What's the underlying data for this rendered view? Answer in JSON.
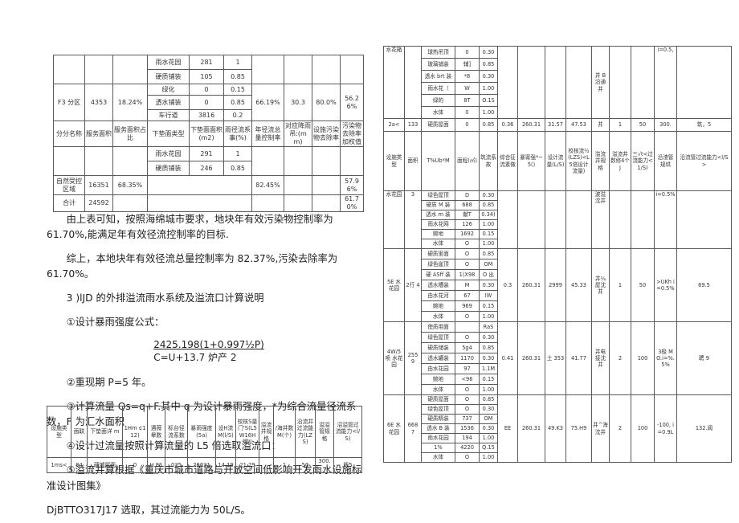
{
  "left": {
    "table1": {
      "cols": [
        39,
        35,
        43,
        52,
        43,
        35,
        40,
        35,
        35,
        29
      ],
      "rows": [
        {
          "h": 18,
          "cells": [
            {
              "t": "",
              "rs": 2
            },
            {
              "t": "",
              "rs": 2
            },
            {
              "t": "",
              "rs": 2
            },
            "雨水花园",
            "281",
            "1",
            {
              "t": "",
              "rs": 2
            },
            {
              "t": "",
              "rs": 2
            },
            {
              "t": "",
              "rs": 2
            },
            {
              "t": "",
              "rs": 2
            }
          ]
        },
        {
          "h": 18,
          "cells": [
            "硬质铺装",
            "105",
            "0.85"
          ]
        },
        {
          "h": 14,
          "cells": [
            {
              "t": "F3 分区",
              "rs": 3
            },
            {
              "t": "4353",
              "rs": 3
            },
            {
              "t": "18.24%",
              "rs": 3
            },
            "绿化",
            "0",
            "0.15",
            {
              "t": "66.19%",
              "rs": 3
            },
            {
              "t": "30.3",
              "rs": 3
            },
            {
              "t": "80.0%",
              "rs": 3
            },
            {
              "t": "56.26%",
              "rs": 3
            }
          ]
        },
        {
          "h": 18,
          "cells": [
            "透水铺装",
            "0",
            "0.85"
          ]
        },
        {
          "h": 14,
          "cells": [
            "车行道",
            "3816",
            "0.2"
          ]
        },
        {
          "h": 32,
          "cells": [
            "分分名称",
            "服务面积",
            "服务面积占比",
            "下垫面类型",
            "下垫面面积(m2)",
            "雨径流系事(%)",
            "年径流总量控制率",
            "对应降雨吊:(mm)",
            "设施污染物去除率",
            "污染物去除率加权值"
          ]
        },
        {
          "h": 18,
          "cells": [
            {
              "t": "",
              "rs": 2
            },
            {
              "t": "",
              "rs": 2
            },
            {
              "t": "",
              "rs": 2
            },
            "雨水花园",
            "291",
            "1",
            {
              "t": "",
              "rs": 2
            },
            {
              "t": "",
              "rs": 2
            },
            {
              "t": "",
              "rs": 2
            },
            {
              "t": "",
              "rs": 2
            }
          ]
        },
        {
          "h": 18,
          "cells": [
            "硬质铺装",
            "246",
            "0.85"
          ]
        },
        {
          "h": 24,
          "cells": [
            "自然受控区域",
            "16351",
            "68.35%",
            {
              "t": "",
              "cs": 3
            },
            "82.45%",
            "",
            "",
            "57.96%"
          ]
        },
        {
          "h": 13,
          "cells": [
            "合计",
            "24592",
            "",
            {
              "t": "",
              "cs": 3
            },
            "",
            "",
            "",
            "61.70%"
          ]
        }
      ]
    },
    "paragraphs": [
      {
        "text": "由上表可知，按照海绵城市要求，地块年有效污染物控制率为 61.70%,能满足年有效径流控制率的目标."
      },
      {
        "text": "综上，本地块年有效径流总量控制率为 82.37%,污染去除率为 61.70%。"
      },
      {
        "text": "3  )lJD 的外排溢流雨水系统及溢流口计算说明"
      },
      {
        "text": "①设计暴雨强度公式："
      },
      {
        "text": "②重现期 P=5 年。"
      },
      {
        "text": "③计算流量 Qs=q+F.其中 q 为设计暴雨强度，*为综合流量径流系数，F 为汇水面积"
      },
      {
        "text": "④设计过流量按照计算流量的 L5 倍选取溢流口："
      },
      {
        "text": "⑤溢流井算根据《重庆市城市道路与开放空间低影响开发雨水设施标准设计图集》"
      },
      {
        "text": "DjBTTO317J17 选取，其过流能力为 50L/S。"
      }
    ],
    "formula": {
      "numerator": "2425.198(1+0.997½P)",
      "denominator": "C=U+13.7 炉产 2"
    },
    "table2": {
      "cols": [
        30,
        20,
        44,
        31,
        22,
        28,
        35,
        25,
        29,
        18,
        27,
        25,
        23,
        35
      ],
      "rows": [
        {
          "h": 64,
          "cells": [
            "设施类型",
            "面联",
            "下垫面详 m",
            "1Hm ¢112)",
            "遇薇晕数",
            "标台径流系数",
            "暴雨强度(5a)",
            "设H流M(l/S)",
            "校核S量门'S(L5 W16H 锡')",
            "溢流井规格",
            "/海井数M(个)",
            "沿流井过流能力(LZS)",
            "溢溢管规格",
            "沼溢管过流能力<l/S)"
          ]
        },
        {
          "h": 19,
          "cells": [
            "1ms<",
            "84",
            "硬城屋面",
            "0",
            "U.8S",
            "035",
            "26031",
            "14.19",
            "21.29",
            "",
            "1",
            "50",
            {
              "t": "300.",
              "c": "top"
            },
            "飯5"
          ]
        }
      ]
    }
  },
  "right": {
    "table": {
      "cols": [
        26,
        21,
        42,
        30,
        23,
        25,
        34,
        26,
        32,
        22,
        27,
        29,
        28,
        68
      ],
      "rows": [
        {
          "h": 15,
          "cells": [
            {
              "t": "水花箱",
              "rs": 6,
              "c": "top"
            },
            {
              "t": "",
              "rs": 6
            },
            "球热吊顶",
            "0",
            "0.30",
            {
              "t": "",
              "rs": 6
            },
            {
              "t": "",
              "rs": 6
            },
            {
              "t": "",
              "rs": 6
            },
            {
              "t": "",
              "rs": 6
            },
            {
              "t": "井 B 沿通井",
              "rs": 6
            },
            {
              "t": "",
              "rs": 6
            },
            {
              "t": "",
              "rs": 6
            },
            {
              "t": "i=0.5,",
              "rs": 6,
              "c": "top"
            },
            {
              "t": "",
              "rs": 6
            }
          ]
        },
        {
          "h": 15,
          "cells": [
            "玻璃铺装",
            "辅]",
            "0.85"
          ]
        },
        {
          "h": 15,
          "cells": [
            "透水 brt 装",
            "*8",
            "0.30"
          ]
        },
        {
          "h": 15,
          "cells": [
            "雨水花〔",
            "W",
            "1.00"
          ]
        },
        {
          "h": 15,
          "cells": [
            "绿的",
            "8T",
            "O.1S"
          ]
        },
        {
          "h": 15,
          "cells": [
            "水体",
            "0",
            "1.00"
          ]
        },
        {
          "h": 16,
          "cells": [
            "2a<",
            "133",
            "硬质屋面",
            "0",
            "0.85",
            "0.36",
            "260.31",
            "31.57",
            "47.53",
            "井",
            "1",
            "50",
            "300.",
            "筑，5"
          ]
        },
        {
          "h": 74,
          "cells": [
            "设施类型",
            "面积",
            "T%Ub*M",
            "面程(㎡)",
            "筑流系故",
            "综合征流素做",
            "暴甯强*~5()",
            "设计流量(L/S)",
            "校核流½(LZS)<L5倍设计流量)",
            "溢流井规格",
            "溢流井数修4个J",
            "三√t<过流能力<1/S)",
            "沿渣管规垬",
            "沿流管过流能力<l/S>"
          ]
        },
        {
          "h": 12,
          "cells": [
            {
              "t": "水花园",
              "rs": 6,
              "c": "top"
            },
            {
              "t": "3",
              "rs": 6,
              "c": "top"
            },
            "绿色屋顶",
            "D",
            "0.30",
            {
              "t": "",
              "rs": 6
            },
            {
              "t": "",
              "rs": 6
            },
            {
              "t": "",
              "rs": 6
            },
            {
              "t": "",
              "rs": 6
            },
            {
              "t": "波溢沈井",
              "rs": 6,
              "c": "top"
            },
            {
              "t": "",
              "rs": 6
            },
            {
              "t": "",
              "rs": 6
            },
            {
              "t": "i=0.5%",
              "rs": 6,
              "c": "top"
            },
            {
              "t": "",
              "rs": 6
            }
          ]
        },
        {
          "h": 12,
          "cells": [
            "硬质 M 装",
            "688",
            "0.85"
          ]
        },
        {
          "h": 12,
          "cells": [
            "透水 m 装",
            "献T",
            "0.34)"
          ]
        },
        {
          "h": 12,
          "cells": [
            "雨水花网",
            "126",
            "1.00"
          ]
        },
        {
          "h": 12,
          "cells": [
            "婉地",
            "1692",
            "0.15"
          ]
        },
        {
          "h": 12,
          "cells": [
            "水体",
            "O",
            "1.00"
          ]
        },
        {
          "h": 13,
          "cells": [
            {
              "t": "5E 水花园",
              "rs": 7
            },
            {
              "t": "2行 4",
              "rs": 7
            },
            "硬质里面",
            "O",
            "0.85",
            {
              "t": "0.3",
              "rs": 7
            },
            {
              "t": "260.31",
              "rs": 7
            },
            {
              "t": "2999",
              "rs": 7
            },
            {
              "t": "45.33",
              "rs": 7
            },
            {
              "t": "井¼屋沈井",
              "rs": 7
            },
            {
              "t": "1",
              "rs": 7
            },
            {
              "t": "50",
              "rs": 7
            },
            {
              "t": ">UKh i=0.5%",
              "rs": 7
            },
            {
              "t": "69.5",
              "rs": 7
            }
          ]
        },
        {
          "h": 13,
          "cells": [
            "绿色崖顶",
            "O",
            "OM"
          ]
        },
        {
          "h": 13,
          "cells": [
            "硬 ASff 装",
            "1(X98",
            "O 出"
          ]
        },
        {
          "h": 13,
          "cells": [
            "透水槽装",
            "M",
            "0.30"
          ]
        },
        {
          "h": 13,
          "cells": [
            "由水花河",
            "67",
            "IW"
          ]
        },
        {
          "h": 13,
          "cells": [
            "婉地",
            "969",
            "0.15"
          ]
        },
        {
          "h": 13,
          "cells": [
            "水体",
            "O",
            "1.00"
          ]
        },
        {
          "h": 13,
          "cells": [
            {
              "t": "4W/5 喷 水花园",
              "rs": 7
            },
            {
              "t": "255 9",
              "rs": 7
            },
            "使质用面",
            "",
            "RaS",
            {
              "t": "0.41",
              "rs": 7
            },
            {
              "t": "260.31",
              "rs": 7
            },
            {
              "t": "土 353",
              "rs": 7
            },
            {
              "t": "41.77",
              "rs": 7
            },
            {
              "t": "井电接沈井",
              "rs": 7
            },
            {
              "t": "2",
              "rs": 7
            },
            {
              "t": "100",
              "rs": 7
            },
            {
              "t": "3极 MO.i=%.5%",
              "rs": 7
            },
            {
              "t": "聘 9",
              "rs": 7
            }
          ]
        },
        {
          "h": 13,
          "cells": [
            "绿色屋顶",
            "O",
            "0.30"
          ]
        },
        {
          "h": 13,
          "cells": [
            "硬质储装",
            "5g4",
            "0.85"
          ]
        },
        {
          "h": 13,
          "cells": [
            "透水罐装",
            "1170",
            "0.30"
          ]
        },
        {
          "h": 13,
          "cells": [
            "由水花园",
            "97",
            "1.1M"
          ]
        },
        {
          "h": 13,
          "cells": [
            "婉地",
            "<96",
            "0.15"
          ]
        },
        {
          "h": 13,
          "cells": [
            "水体",
            "O",
            "1.00"
          ]
        },
        {
          "h": 12,
          "cells": [
            {
              "t": "6E 水花园",
              "rs": 7
            },
            {
              "t": "668 7",
              "rs": 7
            },
            "硬质屋面",
            "O",
            "0.85",
            {
              "t": "EE",
              "rs": 7
            },
            {
              "t": "260.31",
              "rs": 7
            },
            {
              "t": "49.K3",
              "rs": 7
            },
            {
              "t": "75.H9",
              "rs": 7
            },
            {
              "t": "井^海沈井",
              "rs": 7
            },
            {
              "t": "2",
              "rs": 7
            },
            {
              "t": "100",
              "rs": 7
            },
            {
              "t": "-100, i=0.9L",
              "rs": 7
            },
            {
              "t": "132.阈",
              "rs": 7
            }
          ]
        },
        {
          "h": 12,
          "cells": [
            "绿色屋顶",
            "O",
            "0.30"
          ]
        },
        {
          "h": 12,
          "cells": [
            "硬质精装",
            "737",
            "OM"
          ]
        },
        {
          "h": 12,
          "cells": [
            "透水 B 装",
            "1536",
            "0.30"
          ]
        },
        {
          "h": 12,
          "cells": [
            "雨水花园",
            "194",
            "1.00"
          ]
        },
        {
          "h": 12,
          "cells": [
            "1%",
            "4220",
            "Q.15"
          ]
        },
        {
          "h": 12,
          "cells": [
            "水体",
            "O",
            "1.00"
          ]
        }
      ]
    }
  }
}
